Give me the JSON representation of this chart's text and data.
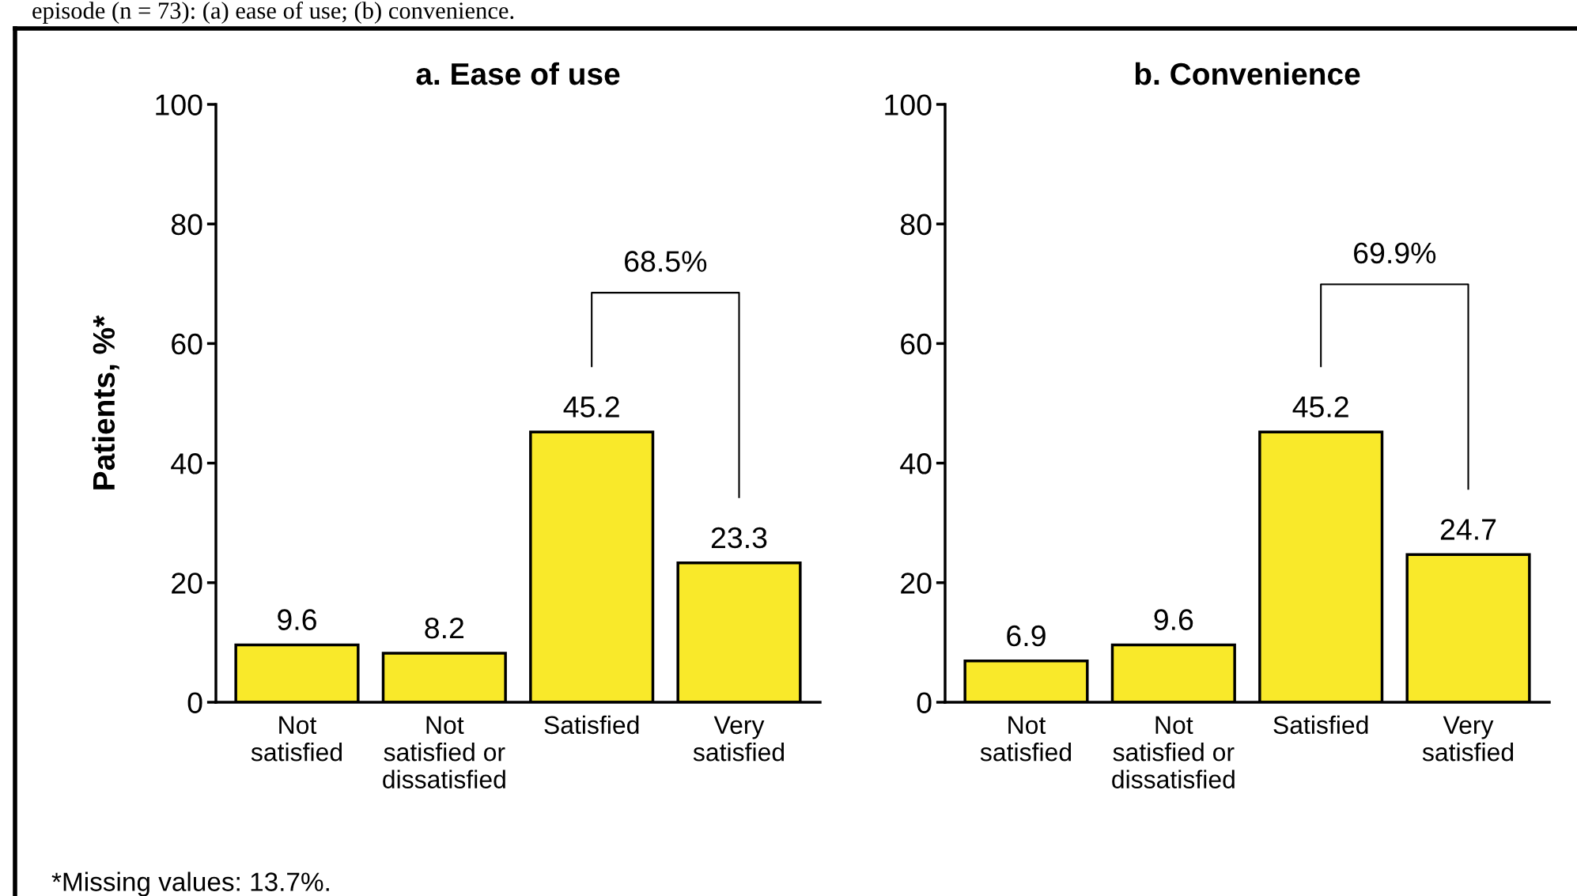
{
  "chart_data": [
    {
      "type": "bar",
      "title": "a. Ease of use",
      "ylabel": "Patients, %*",
      "categories": [
        "Not\nsatisfied",
        "Not\nsatisfied or\ndissatisfied",
        "Satisfied",
        "Very\nsatisfied"
      ],
      "values": [
        9.6,
        8.2,
        45.2,
        23.3
      ],
      "color": "#f9e92a",
      "data_labels": true,
      "ylim": [
        0,
        100
      ],
      "yticks": [
        0,
        20,
        40,
        60,
        80,
        100
      ],
      "grid": false,
      "annotations": [
        "68.5%",
        "episode (n = 73): (a) ease of use; (b) convenience.",
        "*Missing values: 13.7%."
      ]
    },
    {
      "type": "bar",
      "title": "b. Convenience",
      "categories": [
        "Not\nsatisfied",
        "Not\nsatisfied or\ndissatisfied",
        "Satisfied",
        "Very\nsatisfied"
      ],
      "values": [
        6.9,
        9.6,
        45.2,
        24.7
      ],
      "color": "#f9e92a",
      "data_labels": true,
      "ylim": [
        0,
        100
      ],
      "yticks": [
        0,
        20,
        40,
        60,
        80,
        100
      ],
      "grid": false,
      "annotations": [
        "69.9%"
      ]
    }
  ]
}
